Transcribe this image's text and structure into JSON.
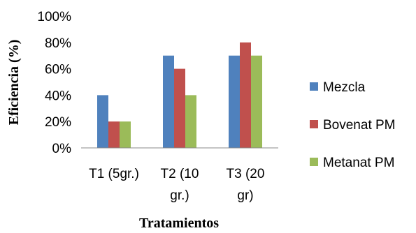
{
  "chart_data": {
    "type": "bar",
    "title": "",
    "xlabel": "Tratamientos",
    "ylabel": "Eficiencia (%)",
    "ylim": [
      0,
      100
    ],
    "yticks": [
      "0%",
      "20%",
      "40%",
      "60%",
      "80%",
      "100%"
    ],
    "categories": [
      [
        "T1 (5gr.)"
      ],
      [
        "T2 (10",
        "gr.)"
      ],
      [
        "T3 (20",
        "gr)"
      ]
    ],
    "series": [
      {
        "name": "Mezcla",
        "color": "#4F81BD",
        "values": [
          40,
          70,
          70
        ]
      },
      {
        "name": "Bovenat PM",
        "color": "#C0504D",
        "values": [
          20,
          60,
          80
        ]
      },
      {
        "name": "Metanat PM",
        "color": "#9BBB59",
        "values": [
          20,
          40,
          70
        ]
      }
    ],
    "grid": false,
    "legend": "right"
  }
}
